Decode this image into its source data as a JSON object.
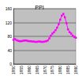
{
  "chart_data": {
    "type": "line",
    "title": "PPI",
    "categories": [
      "1950",
      null,
      null,
      null,
      null,
      "1955",
      null,
      null,
      null,
      null,
      "1960",
      null,
      null,
      null,
      null,
      "1965",
      null,
      null,
      null,
      null,
      "1970",
      null,
      null,
      null,
      null,
      "1975",
      null,
      null,
      null,
      null,
      "1980",
      null,
      null,
      null,
      null,
      "1985",
      null,
      null,
      null,
      null,
      "1990"
    ],
    "values": [
      70,
      72,
      69,
      67,
      66,
      66,
      67,
      68,
      68,
      67,
      66,
      66,
      65,
      65,
      64,
      64,
      65,
      65,
      64,
      64,
      65,
      66,
      68,
      74,
      82,
      88,
      92,
      98,
      105,
      115,
      128,
      140,
      145,
      135,
      118,
      100,
      92,
      88,
      82,
      78,
      76
    ],
    "color": "#ff00ff",
    "marker": "square",
    "ylim": [
      0,
      160
    ],
    "yticks": [
      0,
      40,
      80,
      120,
      160
    ],
    "grid": true
  }
}
